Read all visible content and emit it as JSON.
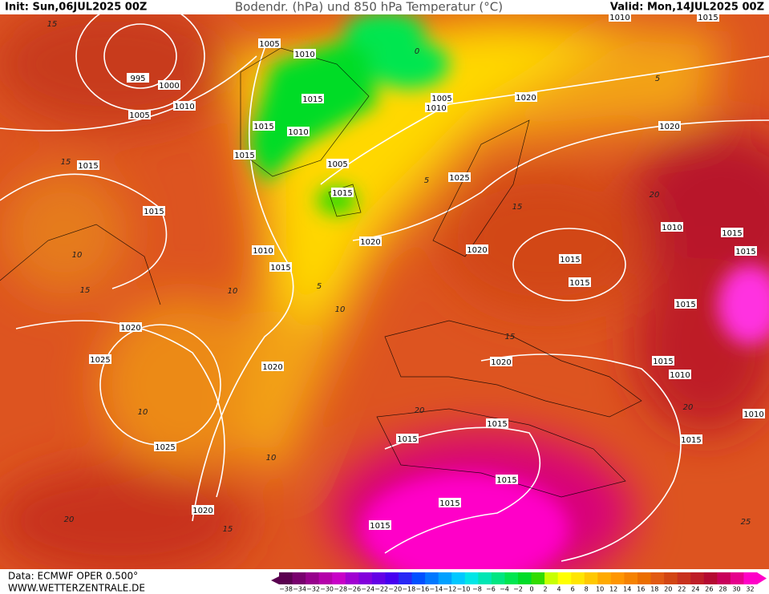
{
  "header": {
    "init": "Init: Sun,06JUL2025 00Z",
    "title": "Bodendr. (hPa) und 850 hPa Temperatur (°C)",
    "valid": "Valid: Mon,14JUL2025 00Z"
  },
  "footer": {
    "source": "Data: ECMWF OPER 0.500°",
    "website": "WWW.WETTERZENTRALE.DE"
  },
  "isobar_labels": [
    "1005",
    "1010",
    "995",
    "1000",
    "1010",
    "1005",
    "1015",
    "1015",
    "1010",
    "1005",
    "1010",
    "1020",
    "1020",
    "1015",
    "1005",
    "1015",
    "1025",
    "1015",
    "1015",
    "1020",
    "1010",
    "1015",
    "1020",
    "1010",
    "1015",
    "1015",
    "1015",
    "1015",
    "1015",
    "1020",
    "1025",
    "1020",
    "1020",
    "1015",
    "1010",
    "1015",
    "1015",
    "1015",
    "1010",
    "1025",
    "1015",
    "1015",
    "1020",
    "1015",
    "1010",
    "1015"
  ],
  "temperature_labels": [
    "15",
    "15",
    "10",
    "15",
    "10",
    "10",
    "5",
    "5",
    "5",
    "15",
    "15",
    "20",
    "20",
    "20",
    "10",
    "10",
    "15",
    "20",
    "25",
    "0"
  ],
  "legend": {
    "labels": [
      "−38",
      "−34",
      "−32",
      "−30",
      "−28",
      "−26",
      "−24",
      "−22",
      "−20",
      "−18",
      "−16",
      "−14",
      "−12",
      "−10",
      "−8",
      "−6",
      "−4",
      "−2",
      "0",
      "2",
      "4",
      "6",
      "8",
      "10",
      "12",
      "14",
      "16",
      "18",
      "20",
      "22",
      "24",
      "26",
      "28",
      "30",
      "32"
    ],
    "colors": [
      "#5a0050",
      "#78006e",
      "#96008c",
      "#b400aa",
      "#c800c8",
      "#a000d2",
      "#8200dc",
      "#6400e6",
      "#4600f0",
      "#2828f5",
      "#0050ff",
      "#0078ff",
      "#00a0ff",
      "#00c8ff",
      "#00e6e6",
      "#00e6b4",
      "#00e682",
      "#00e650",
      "#00dc28",
      "#32dc00",
      "#c8ff00",
      "#ffff00",
      "#ffe600",
      "#ffc800",
      "#ffaa00",
      "#ff9600",
      "#f58200",
      "#eb6e00",
      "#e15a14",
      "#d24614",
      "#c8321e",
      "#be1e28",
      "#b40a32",
      "#c8005a",
      "#e6008c",
      "#ff00c8"
    ]
  }
}
